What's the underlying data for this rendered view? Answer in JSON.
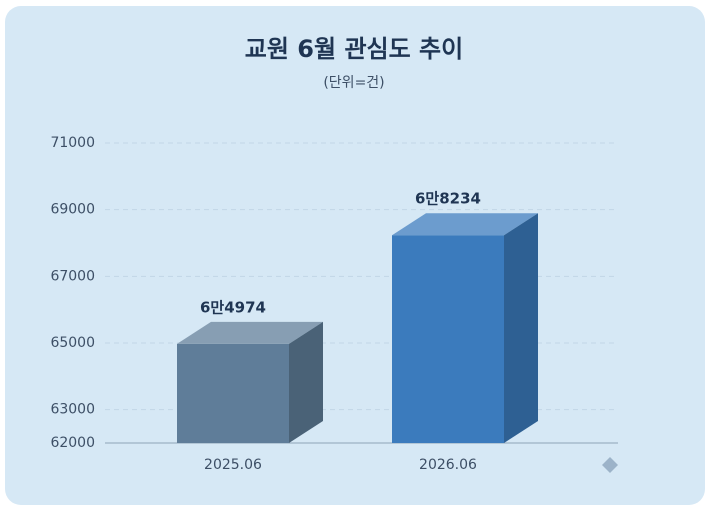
{
  "chart_data": {
    "type": "bar3d",
    "title": "교원 6월 관심도 추이",
    "subtitle": "(단위=건)",
    "categories": [
      "2025.06",
      "2026.06"
    ],
    "values": [
      64974,
      68234
    ],
    "value_labels": [
      "6만4974",
      "6만8234"
    ],
    "colors": [
      "#5f7d99",
      "#3b7bbd"
    ],
    "ylim": [
      62000,
      71000
    ],
    "yticks": [
      62000,
      63000,
      65000,
      67000,
      69000,
      71000
    ],
    "grid": true
  }
}
